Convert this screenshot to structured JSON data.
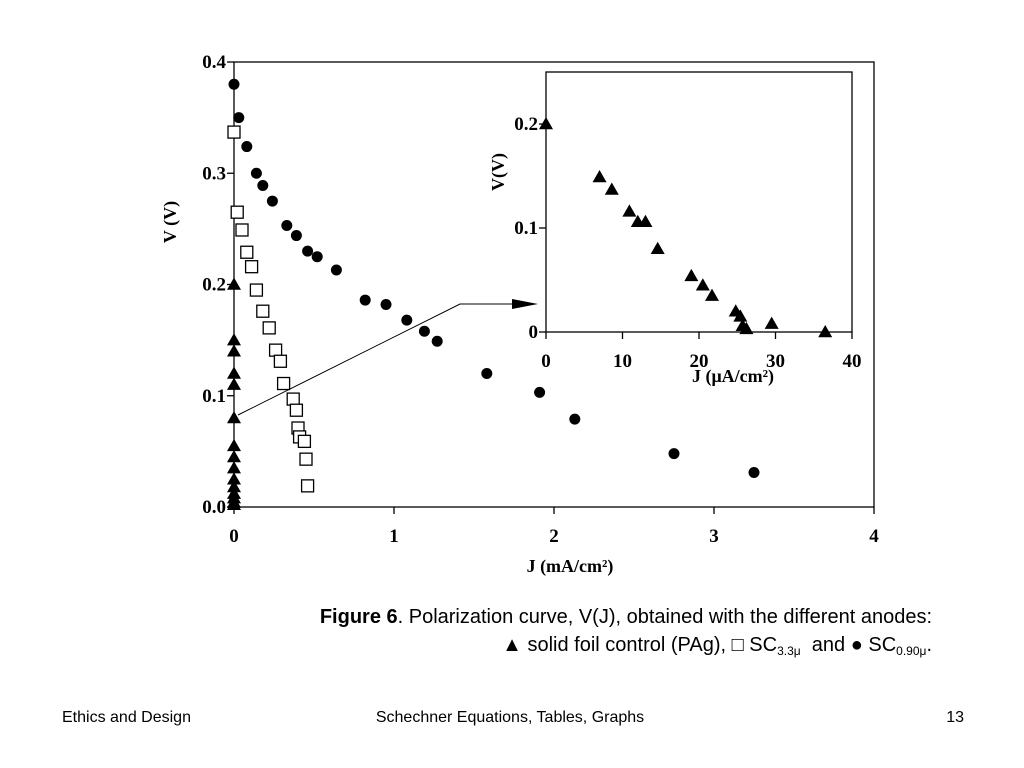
{
  "chart_data": [
    {
      "type": "scatter",
      "xlabel": "J (mA/cm²)",
      "ylabel": "V (V)",
      "xlim": [
        0,
        4
      ],
      "ylim": [
        0,
        0.4
      ],
      "xticks": [
        "0",
        "1",
        "2",
        "3",
        "4"
      ],
      "yticks": [
        "0.0",
        "0.1",
        "0.2",
        "0.3",
        "0.4"
      ],
      "grid": false,
      "series": [
        {
          "marker": "filled-circle",
          "x": [
            0.0,
            0.03,
            0.08,
            0.14,
            0.18,
            0.24,
            0.33,
            0.39,
            0.46,
            0.52,
            0.64,
            0.82,
            0.95,
            1.08,
            1.19,
            1.27,
            1.58,
            1.91,
            2.13,
            2.75,
            3.25
          ],
          "y": [
            0.38,
            0.35,
            0.324,
            0.3,
            0.289,
            0.275,
            0.253,
            0.244,
            0.23,
            0.225,
            0.213,
            0.186,
            0.182,
            0.168,
            0.158,
            0.149,
            0.12,
            0.103,
            0.079,
            0.048,
            0.031
          ]
        },
        {
          "marker": "open-square",
          "x": [
            0.0,
            0.02,
            0.05,
            0.08,
            0.11,
            0.14,
            0.18,
            0.22,
            0.26,
            0.29,
            0.31,
            0.37,
            0.39,
            0.4,
            0.41,
            0.44,
            0.45,
            0.46
          ],
          "y": [
            0.337,
            0.265,
            0.249,
            0.229,
            0.216,
            0.195,
            0.176,
            0.161,
            0.141,
            0.131,
            0.111,
            0.097,
            0.087,
            0.071,
            0.063,
            0.059,
            0.043,
            0.019
          ]
        },
        {
          "marker": "filled-triangle",
          "x": [
            0,
            0,
            0,
            0,
            0,
            0,
            0,
            0,
            0,
            0,
            0,
            0,
            0,
            0,
            0
          ],
          "y": [
            0.2,
            0.15,
            0.14,
            0.12,
            0.11,
            0.08,
            0.055,
            0.045,
            0.035,
            0.025,
            0.018,
            0.012,
            0.008,
            0.004,
            0.002
          ]
        }
      ]
    },
    {
      "type": "scatter",
      "xlabel": "J (μA/cm²)",
      "ylabel": "V(V)",
      "xlim": [
        0,
        40
      ],
      "ylim": [
        0,
        0.25
      ],
      "xticks": [
        "0",
        "10",
        "20",
        "30",
        "40"
      ],
      "yticks": [
        "0",
        "0.1",
        "0.2"
      ],
      "grid": false,
      "series": [
        {
          "marker": "filled-triangle",
          "x": [
            0,
            7,
            8.6,
            10.9,
            12,
            13,
            14.6,
            19,
            20.5,
            21.7,
            24.8,
            25.4,
            25.7,
            26.2,
            29.5,
            36.5
          ],
          "y": [
            0.2,
            0.149,
            0.137,
            0.116,
            0.106,
            0.106,
            0.08,
            0.054,
            0.045,
            0.035,
            0.02,
            0.015,
            0.006,
            0.003,
            0.008,
            0.0
          ]
        }
      ]
    }
  ],
  "caption": {
    "figure_label": "Figure 6",
    "line1": ". Polarization curve, V(J), obtained with the different anodes:",
    "line2_triangle": "▲ solid foil control (PAg), ",
    "line2_square": "□ SC",
    "line2_square_sub": "3.3μ",
    "line2_and": "  and ● SC",
    "line2_circle_sub": "0.90μ",
    "line2_end": "."
  },
  "footer": {
    "left": "Ethics and Design",
    "center": "Schechner  Equations, Tables, Graphs",
    "right": "13"
  }
}
